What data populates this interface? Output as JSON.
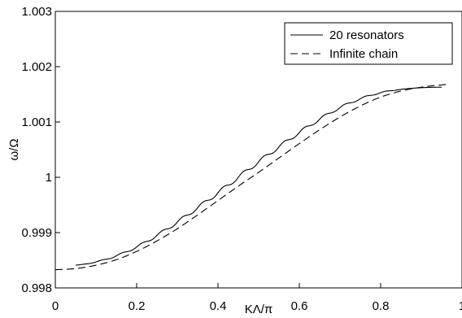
{
  "chart_data": {
    "type": "line",
    "title": "",
    "xlabel": "KΛ/π",
    "ylabel": "ω/Ω",
    "xlim": [
      0,
      1
    ],
    "ylim": [
      0.998,
      1.003
    ],
    "xticks": [
      0,
      0.2,
      0.4,
      0.6,
      0.8,
      1
    ],
    "xtick_labels": [
      "0",
      "0.2",
      "0.4",
      "0.6",
      "0.8",
      "1"
    ],
    "yticks": [
      0.998,
      0.999,
      1,
      1.001,
      1.002,
      1.003
    ],
    "ytick_labels": [
      "0.998",
      "0.999",
      "1",
      "1.001",
      "1.002",
      "1.003"
    ],
    "grid": false,
    "legend_position": "top-right",
    "series": [
      {
        "name": "20 resonators",
        "style": "solid",
        "color": "#000000",
        "x": [
          0.05,
          0.1,
          0.15,
          0.2,
          0.25,
          0.3,
          0.35,
          0.4,
          0.45,
          0.5,
          0.55,
          0.6,
          0.65,
          0.7,
          0.75,
          0.8,
          0.85,
          0.9,
          0.95
        ],
        "y": [
          0.99841,
          0.99847,
          0.99858,
          0.99874,
          0.99895,
          0.99919,
          0.99945,
          0.99972,
          1.0,
          1.00028,
          1.00055,
          1.00081,
          1.00105,
          1.00126,
          1.00142,
          1.00153,
          1.00159,
          1.00162,
          1.00163
        ]
      },
      {
        "name": "Infinite chain",
        "style": "dashed",
        "color": "#000000",
        "x": [
          0,
          0.05,
          0.1,
          0.15,
          0.2,
          0.25,
          0.3,
          0.35,
          0.4,
          0.45,
          0.5,
          0.55,
          0.6,
          0.65,
          0.7,
          0.75,
          0.8,
          0.85,
          0.9,
          0.95,
          0.97
        ],
        "y": [
          0.99833,
          0.99835,
          0.99841,
          0.99851,
          0.99866,
          0.99885,
          0.99907,
          0.99932,
          0.99958,
          0.99984,
          1.00009,
          1.00035,
          1.00061,
          1.00086,
          1.00109,
          1.00129,
          1.00145,
          1.00156,
          1.00163,
          1.00167,
          1.00168
        ]
      }
    ]
  }
}
